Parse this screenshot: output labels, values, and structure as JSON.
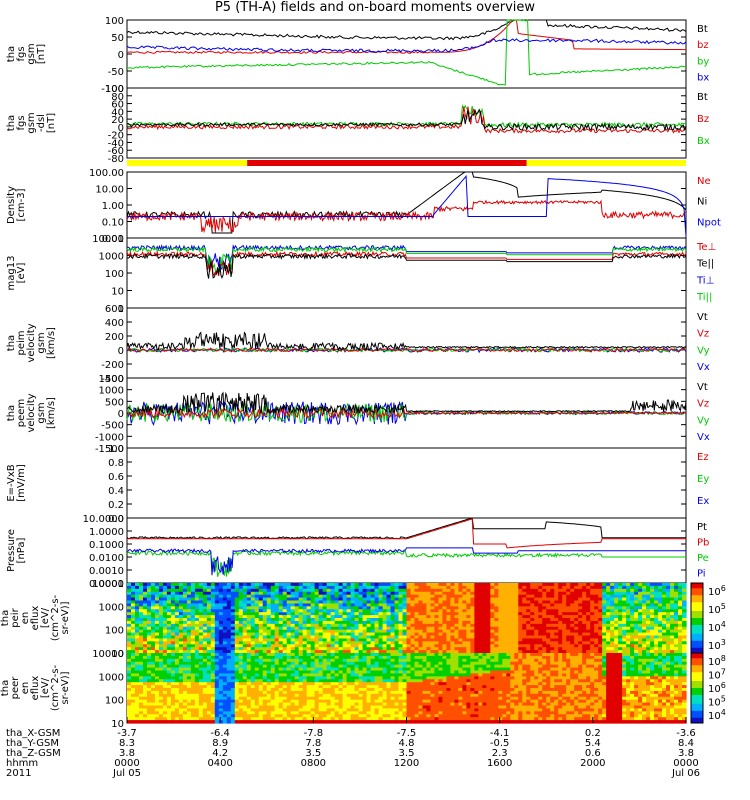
{
  "title": "P5 (TH-A) fields and on-board moments overview",
  "colors": {
    "black": "#000000",
    "red": "#e00000",
    "green": "#00cc00",
    "blue": "#0000ee",
    "yellow": "#ffff00"
  },
  "chart_data": [
    {
      "type": "line",
      "id": "fgs_gsm",
      "ylabel": [
        "tha",
        "fgs",
        "gsm",
        "[nT]"
      ],
      "yticks": [
        "100",
        "50",
        "0",
        "-50",
        "-100"
      ],
      "ylim": [
        -100,
        100
      ],
      "series": [
        {
          "name": "Bt",
          "color": "#000000"
        },
        {
          "name": "bz",
          "color": "#e00000"
        },
        {
          "name": "by",
          "color": "#00cc00"
        },
        {
          "name": "bx",
          "color": "#0000ee"
        }
      ]
    },
    {
      "type": "line",
      "id": "fgs_fac",
      "ylabel": [
        "tha",
        "fgs",
        "gsm",
        "-dsl",
        "[nT]"
      ],
      "yticks": [
        "100",
        "80",
        "60",
        "40",
        "20",
        "0",
        "-20",
        "-40",
        "-60",
        "-80"
      ],
      "ylim": [
        -80,
        100
      ],
      "series": [
        {
          "name": "Bt",
          "color": "#000000"
        },
        {
          "name": "Bz",
          "color": "#e00000"
        },
        {
          "name": "Bx",
          "color": "#00cc00"
        }
      ]
    },
    {
      "type": "line",
      "id": "density",
      "ylabel": [
        "Density",
        "[cm-3]"
      ],
      "yticks": [
        "100.00",
        "10.00",
        "1.00",
        "0.10",
        "0.01"
      ],
      "ylim": [
        0.01,
        100
      ],
      "series": [
        {
          "name": "Ne",
          "color": "#e00000"
        },
        {
          "name": "Ni",
          "color": "#000000"
        },
        {
          "name": "Npot",
          "color": "#0000ee"
        }
      ]
    },
    {
      "type": "line",
      "id": "temp",
      "ylabel": [
        "mag13",
        "[eV]"
      ],
      "yticks": [
        "10000",
        "1000",
        "100",
        "10",
        "1"
      ],
      "ylim": [
        1,
        10000
      ],
      "series": [
        {
          "name": "Te⊥",
          "color": "#e00000"
        },
        {
          "name": "Te||",
          "color": "#000000"
        },
        {
          "name": "Ti⊥",
          "color": "#0000ee"
        },
        {
          "name": "Ti||",
          "color": "#00cc00"
        }
      ]
    },
    {
      "type": "line",
      "id": "peim_vel",
      "ylabel": [
        "tha",
        "peim",
        "velocity",
        "gsm",
        "[km/s]"
      ],
      "yticks": [
        "600",
        "400",
        "200",
        "0",
        "-200",
        "-400"
      ],
      "ylim": [
        -400,
        600
      ],
      "series": [
        {
          "name": "Vt",
          "color": "#000000"
        },
        {
          "name": "Vz",
          "color": "#e00000"
        },
        {
          "name": "Vy",
          "color": "#00cc00"
        },
        {
          "name": "Vx",
          "color": "#0000ee"
        }
      ]
    },
    {
      "type": "line",
      "id": "peem_vel",
      "ylabel": [
        "tha",
        "peem",
        "velocity",
        "gsm",
        "[km/s]"
      ],
      "yticks": [
        "1500",
        "1000",
        "500",
        "0",
        "-500",
        "-1000",
        "-1500"
      ],
      "ylim": [
        -1500,
        1500
      ],
      "series": [
        {
          "name": "Vt",
          "color": "#000000"
        },
        {
          "name": "Vz",
          "color": "#e00000"
        },
        {
          "name": "Vy",
          "color": "#00cc00"
        },
        {
          "name": "Vx",
          "color": "#0000ee"
        }
      ]
    },
    {
      "type": "line",
      "id": "efield",
      "ylabel": [
        "E=-VxB",
        "[mV/m]"
      ],
      "yticks": [
        "1.0",
        "0.8",
        "0.6",
        "0.4",
        "0.2",
        "0.0"
      ],
      "ylim": [
        0,
        1
      ],
      "series": [
        {
          "name": "Ez",
          "color": "#e00000"
        },
        {
          "name": "Ey",
          "color": "#00cc00"
        },
        {
          "name": "Ex",
          "color": "#0000ee"
        }
      ]
    },
    {
      "type": "line",
      "id": "pressure",
      "ylabel": [
        "Pressure",
        "[nPa]"
      ],
      "yticks": [
        "10.0000",
        "1.0000",
        "0.1000",
        "0.0100",
        "0.0010",
        "0.0001"
      ],
      "ylim": [
        0.0001,
        10
      ],
      "series": [
        {
          "name": "Pt",
          "color": "#000000"
        },
        {
          "name": "Pb",
          "color": "#e00000"
        },
        {
          "name": "Pe",
          "color": "#00cc00"
        },
        {
          "name": "Pi",
          "color": "#0000ee"
        }
      ]
    },
    {
      "type": "heatmap",
      "id": "peir_en",
      "ylabel": [
        "tha",
        "peir",
        "en",
        "eflux",
        "[eV/",
        "(cm^2-s-",
        "sr-eV)]"
      ],
      "yticks": [
        "10000",
        "1000",
        "100",
        "10"
      ],
      "ylim": [
        10,
        20000
      ],
      "colorbar": {
        "ticks": [
          "10^6",
          "10^5",
          "10^4",
          "10^3"
        ]
      }
    },
    {
      "type": "heatmap",
      "id": "peer_en",
      "ylabel": [
        "tha",
        "peer",
        "en",
        "eflux",
        "[eV/",
        "(cm^2-s-",
        "sr-eV)]"
      ],
      "yticks": [
        "10000",
        "1000",
        "100",
        "10"
      ],
      "ylim": [
        10,
        20000
      ],
      "colorbar": {
        "ticks": [
          "10^8",
          "10^7",
          "10^6",
          "10^5",
          "10^4"
        ]
      }
    }
  ],
  "xaxis": {
    "rows": [
      {
        "label": "tha_X-GSM",
        "values": [
          "-3.7",
          "-6.4",
          "-7.8",
          "-7.5",
          "-4.1",
          "0.2",
          "-3.6"
        ]
      },
      {
        "label": "tha_Y-GSM",
        "values": [
          "8.3",
          "8.9",
          "7.8",
          "4.8",
          "-0.5",
          "5.4",
          "8.4"
        ]
      },
      {
        "label": "tha_Z-GSM",
        "values": [
          "3.8",
          "4.2",
          "3.5",
          "3.5",
          "2.3",
          "0.6",
          "3.8"
        ]
      },
      {
        "label": "hhmm",
        "values": [
          "0000",
          "0400",
          "0800",
          "1200",
          "1600",
          "2000",
          "0000"
        ]
      },
      {
        "label": "2011",
        "values": [
          "Jul 05",
          "",
          "",
          "",
          "",
          "",
          "Jul 06"
        ]
      }
    ]
  },
  "mode_bar": {
    "colors": [
      "yellow",
      "red",
      "yellow"
    ]
  }
}
